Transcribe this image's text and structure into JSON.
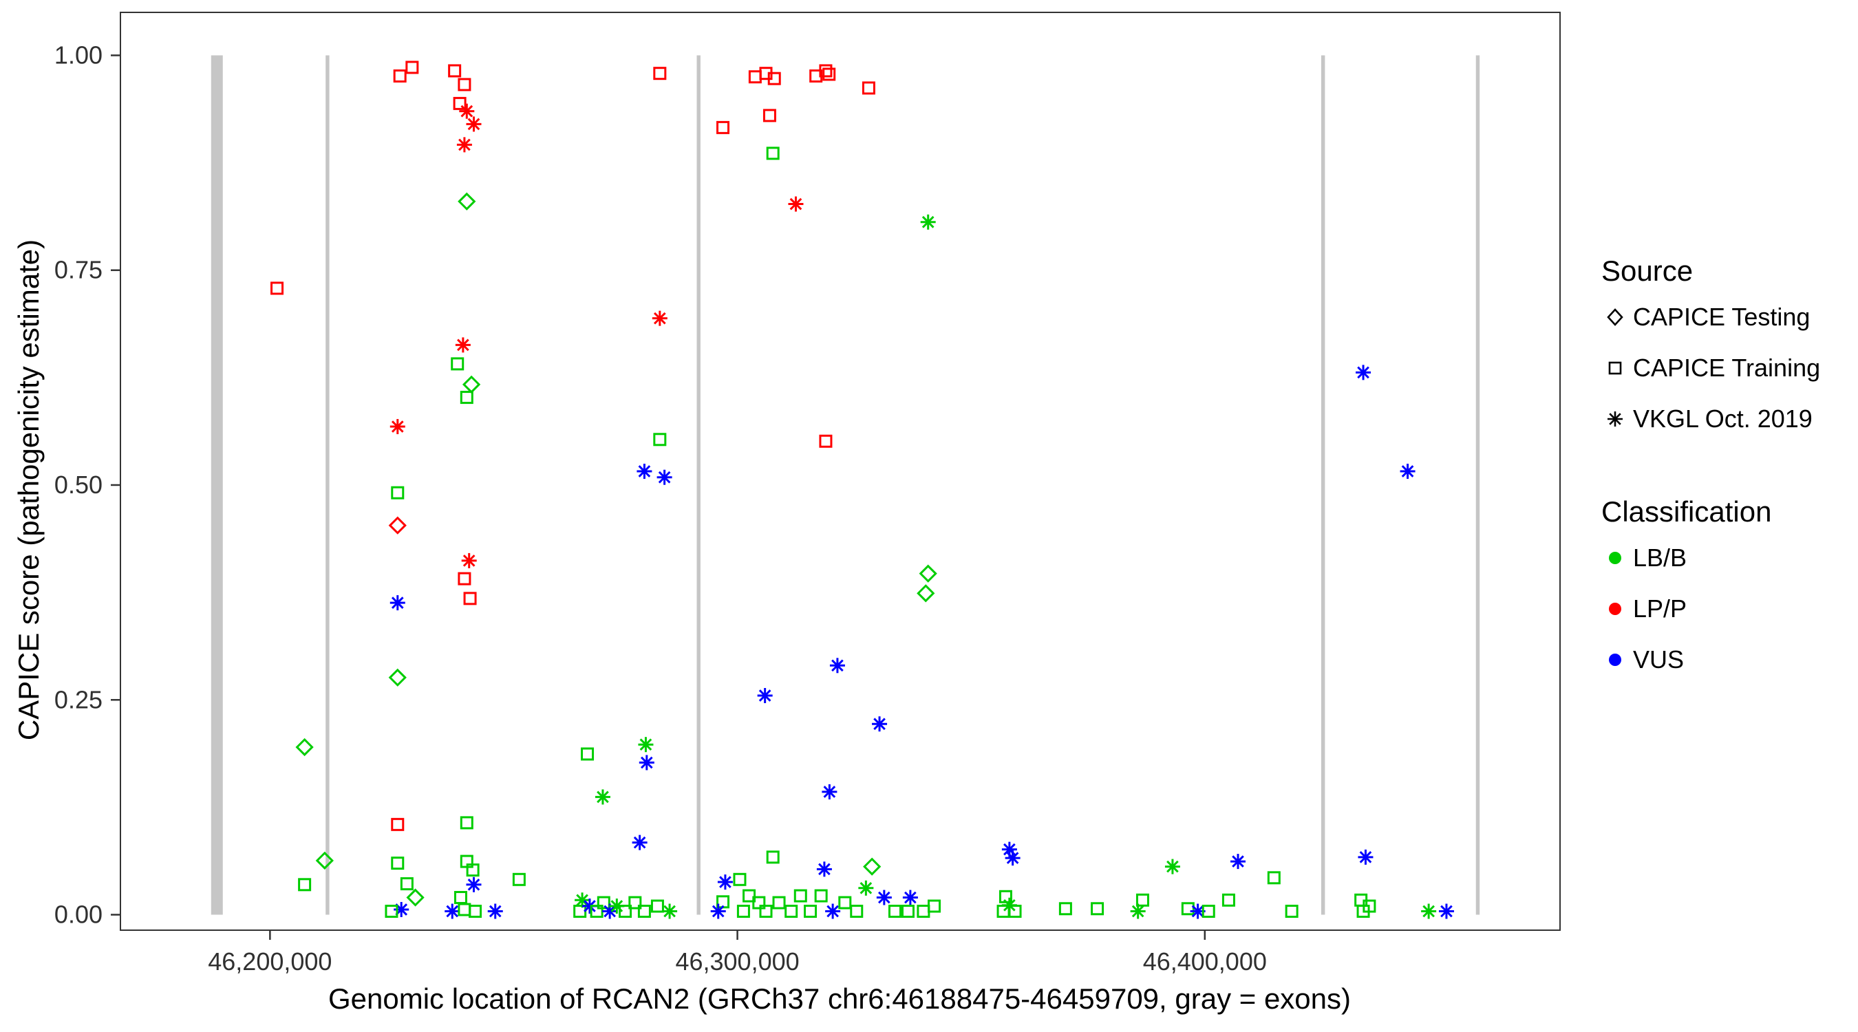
{
  "axes": {
    "x_title": "Genomic location of RCAN2 (GRCh37 chr6:46188475-46459709, gray = exons)",
    "y_title": "CAPICE score (pathogenicity estimate)",
    "x_ticks": [
      {
        "value": 46200000,
        "label": "46,200,000"
      },
      {
        "value": 46300000,
        "label": "46,300,000"
      },
      {
        "value": 46400000,
        "label": "46,400,000"
      }
    ],
    "y_ticks": [
      {
        "value": 0.0,
        "label": "0.00"
      },
      {
        "value": 0.25,
        "label": "0.25"
      },
      {
        "value": 0.5,
        "label": "0.50"
      },
      {
        "value": 0.75,
        "label": "0.75"
      },
      {
        "value": 1.0,
        "label": "1.00"
      }
    ]
  },
  "legend": {
    "source": {
      "title": "Source",
      "items": [
        {
          "shape": "diamond",
          "label": "CAPICE Testing"
        },
        {
          "shape": "square",
          "label": "CAPICE Training"
        },
        {
          "shape": "asterisk",
          "label": "VKGL Oct. 2019"
        }
      ]
    },
    "classification": {
      "title": "Classification",
      "items": [
        {
          "color": "#00CD00",
          "label": "LB/B"
        },
        {
          "color": "#FF0000",
          "label": "LP/P"
        },
        {
          "color": "#0000FF",
          "label": "VUS"
        }
      ]
    }
  },
  "chart_data": {
    "type": "scatter",
    "title": "",
    "xlabel": "Genomic location of RCAN2 (GRCh37 chr6:46188475-46459709, gray = exons)",
    "ylabel": "CAPICE score (pathogenicity estimate)",
    "xlim": [
      46168000,
      46476000
    ],
    "ylim": [
      -0.018,
      1.05
    ],
    "grid": false,
    "legend_position": "right",
    "exon_color": "#c6c6c6",
    "shape_codes": {
      "s": "CAPICE Training (open square)",
      "d": "CAPICE Testing (open diamond)",
      "a": "VKGL Oct. 2019 (asterisk)"
    },
    "class_codes": {
      "g": "LB/B",
      "r": "LP/P",
      "b": "VUS"
    },
    "class_colors": {
      "g": "#00CD00",
      "r": "#FF0000",
      "b": "#0000FF"
    },
    "exons": [
      {
        "start": 46187400,
        "end": 46189900
      },
      {
        "start": 46211900,
        "end": 46212700
      },
      {
        "start": 46291300,
        "end": 46292100
      },
      {
        "start": 46424900,
        "end": 46425700
      },
      {
        "start": 46458000,
        "end": 46458800
      }
    ],
    "points": [
      [
        46201500,
        0.729,
        "s",
        "r"
      ],
      [
        46227800,
        0.976,
        "s",
        "r"
      ],
      [
        46230400,
        0.986,
        "s",
        "r"
      ],
      [
        46239500,
        0.982,
        "s",
        "r"
      ],
      [
        46241600,
        0.966,
        "s",
        "r"
      ],
      [
        46240600,
        0.944,
        "s",
        "r"
      ],
      [
        46242100,
        0.935,
        "a",
        "r"
      ],
      [
        46243600,
        0.92,
        "a",
        "r"
      ],
      [
        46241600,
        0.896,
        "a",
        "r"
      ],
      [
        46283400,
        0.979,
        "s",
        "r"
      ],
      [
        46296900,
        0.916,
        "s",
        "r"
      ],
      [
        46303800,
        0.975,
        "s",
        "r"
      ],
      [
        46306100,
        0.979,
        "s",
        "r"
      ],
      [
        46307900,
        0.973,
        "s",
        "r"
      ],
      [
        46306900,
        0.93,
        "s",
        "r"
      ],
      [
        46307600,
        0.886,
        "s",
        "g"
      ],
      [
        46316800,
        0.976,
        "s",
        "r"
      ],
      [
        46318900,
        0.982,
        "s",
        "r"
      ],
      [
        46319600,
        0.978,
        "s",
        "r"
      ],
      [
        46328100,
        0.962,
        "s",
        "r"
      ],
      [
        46312500,
        0.827,
        "a",
        "r"
      ],
      [
        46340800,
        0.806,
        "a",
        "g"
      ],
      [
        46242100,
        0.83,
        "d",
        "g"
      ],
      [
        46240100,
        0.641,
        "s",
        "g"
      ],
      [
        46243100,
        0.617,
        "d",
        "g"
      ],
      [
        46242100,
        0.602,
        "s",
        "g"
      ],
      [
        46241300,
        0.663,
        "a",
        "r"
      ],
      [
        46283400,
        0.694,
        "a",
        "r"
      ],
      [
        46227300,
        0.568,
        "a",
        "r"
      ],
      [
        46227300,
        0.491,
        "s",
        "g"
      ],
      [
        46227300,
        0.453,
        "d",
        "r"
      ],
      [
        46242600,
        0.412,
        "a",
        "r"
      ],
      [
        46241600,
        0.391,
        "s",
        "r"
      ],
      [
        46242800,
        0.368,
        "s",
        "r"
      ],
      [
        46227300,
        0.363,
        "a",
        "b"
      ],
      [
        46227300,
        0.276,
        "d",
        "g"
      ],
      [
        46280100,
        0.516,
        "a",
        "b"
      ],
      [
        46284400,
        0.509,
        "a",
        "b"
      ],
      [
        46283400,
        0.553,
        "s",
        "g"
      ],
      [
        46318900,
        0.551,
        "s",
        "r"
      ],
      [
        46433900,
        0.631,
        "a",
        "b"
      ],
      [
        46443400,
        0.516,
        "a",
        "b"
      ],
      [
        46340800,
        0.397,
        "d",
        "g"
      ],
      [
        46340300,
        0.374,
        "d",
        "g"
      ],
      [
        46321400,
        0.29,
        "a",
        "b"
      ],
      [
        46305900,
        0.255,
        "a",
        "b"
      ],
      [
        46330400,
        0.222,
        "a",
        "b"
      ],
      [
        46319700,
        0.143,
        "a",
        "b"
      ],
      [
        46280400,
        0.198,
        "a",
        "g"
      ],
      [
        46280600,
        0.177,
        "a",
        "b"
      ],
      [
        46267900,
        0.187,
        "s",
        "g"
      ],
      [
        46271200,
        0.137,
        "a",
        "g"
      ],
      [
        46279100,
        0.084,
        "a",
        "b"
      ],
      [
        46227300,
        0.105,
        "s",
        "r"
      ],
      [
        46242100,
        0.107,
        "s",
        "g"
      ],
      [
        46207400,
        0.195,
        "d",
        "g"
      ],
      [
        46211700,
        0.063,
        "d",
        "g"
      ],
      [
        46207400,
        0.035,
        "s",
        "g"
      ],
      [
        46227300,
        0.06,
        "s",
        "g"
      ],
      [
        46229300,
        0.036,
        "s",
        "g"
      ],
      [
        46231100,
        0.02,
        "d",
        "g"
      ],
      [
        46228100,
        0.006,
        "a",
        "b"
      ],
      [
        46226000,
        0.004,
        "s",
        "g"
      ],
      [
        46242100,
        0.062,
        "s",
        "g"
      ],
      [
        46243400,
        0.052,
        "s",
        "g"
      ],
      [
        46243600,
        0.035,
        "a",
        "b"
      ],
      [
        46240800,
        0.02,
        "s",
        "g"
      ],
      [
        46239000,
        0.004,
        "a",
        "b"
      ],
      [
        46241600,
        0.006,
        "s",
        "g"
      ],
      [
        46243900,
        0.004,
        "s",
        "g"
      ],
      [
        46248200,
        0.004,
        "a",
        "b"
      ],
      [
        46253300,
        0.041,
        "s",
        "g"
      ],
      [
        46266800,
        0.017,
        "a",
        "g"
      ],
      [
        46266300,
        0.004,
        "s",
        "g"
      ],
      [
        46268400,
        0.01,
        "a",
        "b"
      ],
      [
        46269900,
        0.004,
        "s",
        "g"
      ],
      [
        46271400,
        0.014,
        "s",
        "g"
      ],
      [
        46272700,
        0.004,
        "a",
        "b"
      ],
      [
        46274200,
        0.01,
        "a",
        "g"
      ],
      [
        46276000,
        0.004,
        "s",
        "g"
      ],
      [
        46278100,
        0.014,
        "s",
        "g"
      ],
      [
        46280100,
        0.004,
        "s",
        "g"
      ],
      [
        46282900,
        0.01,
        "s",
        "g"
      ],
      [
        46285500,
        0.004,
        "a",
        "g"
      ],
      [
        46297400,
        0.038,
        "a",
        "b"
      ],
      [
        46296900,
        0.015,
        "s",
        "g"
      ],
      [
        46295900,
        0.004,
        "a",
        "b"
      ],
      [
        46300500,
        0.041,
        "s",
        "g"
      ],
      [
        46302500,
        0.022,
        "s",
        "g"
      ],
      [
        46304600,
        0.014,
        "s",
        "g"
      ],
      [
        46301300,
        0.004,
        "s",
        "g"
      ],
      [
        46307600,
        0.067,
        "s",
        "g"
      ],
      [
        46306100,
        0.004,
        "s",
        "g"
      ],
      [
        46308900,
        0.014,
        "s",
        "g"
      ],
      [
        46311500,
        0.004,
        "s",
        "g"
      ],
      [
        46313500,
        0.022,
        "s",
        "g"
      ],
      [
        46315600,
        0.004,
        "s",
        "g"
      ],
      [
        46318600,
        0.053,
        "a",
        "b"
      ],
      [
        46317900,
        0.022,
        "s",
        "g"
      ],
      [
        46320400,
        0.004,
        "a",
        "b"
      ],
      [
        46323000,
        0.014,
        "s",
        "g"
      ],
      [
        46325500,
        0.004,
        "s",
        "g"
      ],
      [
        46328800,
        0.056,
        "d",
        "g"
      ],
      [
        46327500,
        0.031,
        "a",
        "g"
      ],
      [
        46331400,
        0.02,
        "a",
        "b"
      ],
      [
        46333700,
        0.004,
        "s",
        "g"
      ],
      [
        46337000,
        0.02,
        "a",
        "b"
      ],
      [
        46336500,
        0.004,
        "s",
        "g"
      ],
      [
        46339800,
        0.004,
        "s",
        "g"
      ],
      [
        46342100,
        0.01,
        "s",
        "g"
      ],
      [
        46358200,
        0.076,
        "a",
        "b"
      ],
      [
        46358900,
        0.066,
        "a",
        "b"
      ],
      [
        46357400,
        0.021,
        "s",
        "g"
      ],
      [
        46358200,
        0.011,
        "a",
        "g"
      ],
      [
        46359400,
        0.004,
        "s",
        "g"
      ],
      [
        46356900,
        0.004,
        "s",
        "g"
      ],
      [
        46370200,
        0.007,
        "s",
        "g"
      ],
      [
        46377000,
        0.007,
        "s",
        "g"
      ],
      [
        46386700,
        0.017,
        "s",
        "g"
      ],
      [
        46385700,
        0.004,
        "a",
        "g"
      ],
      [
        46393100,
        0.056,
        "a",
        "g"
      ],
      [
        46396400,
        0.007,
        "s",
        "g"
      ],
      [
        46398500,
        0.004,
        "a",
        "b"
      ],
      [
        46400800,
        0.004,
        "s",
        "g"
      ],
      [
        46407100,
        0.062,
        "a",
        "b"
      ],
      [
        46405100,
        0.017,
        "s",
        "g"
      ],
      [
        46414800,
        0.043,
        "s",
        "g"
      ],
      [
        46418600,
        0.004,
        "s",
        "g"
      ],
      [
        46434400,
        0.067,
        "a",
        "b"
      ],
      [
        46433400,
        0.017,
        "s",
        "g"
      ],
      [
        46435200,
        0.01,
        "s",
        "g"
      ],
      [
        46433900,
        0.004,
        "s",
        "g"
      ],
      [
        46447900,
        0.004,
        "a",
        "g"
      ],
      [
        46451700,
        0.004,
        "a",
        "b"
      ]
    ]
  }
}
